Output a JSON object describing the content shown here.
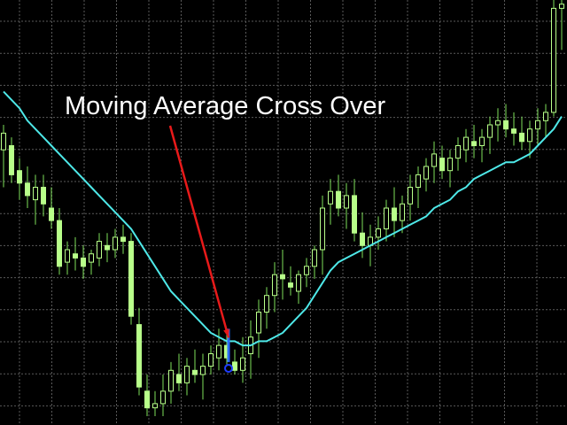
{
  "annotation": {
    "text": "Moving Average Cross Over"
  },
  "colors": {
    "background": "#000000",
    "grid": "#5a5a5a",
    "candle": "#b8ff8a",
    "candle_wick": "#7ee05a",
    "moving_average": "#4ee8e8",
    "arrow": "#e81a1a",
    "signal_bar": "#2a6cff",
    "signal_marker": "#1f3dff"
  },
  "chart_data": {
    "type": "candlestick",
    "grid": true,
    "legend": "none",
    "ylim": [
      0,
      100
    ],
    "candles": [
      {
        "o": 64,
        "h": 70,
        "l": 55,
        "c": 68
      },
      {
        "o": 65,
        "h": 67,
        "l": 56,
        "c": 58
      },
      {
        "o": 59,
        "h": 62,
        "l": 52,
        "c": 56
      },
      {
        "o": 56,
        "h": 60,
        "l": 50,
        "c": 53
      },
      {
        "o": 52,
        "h": 58,
        "l": 46,
        "c": 55
      },
      {
        "o": 55,
        "h": 58,
        "l": 48,
        "c": 51
      },
      {
        "o": 50,
        "h": 55,
        "l": 45,
        "c": 47
      },
      {
        "o": 47,
        "h": 50,
        "l": 34,
        "c": 36
      },
      {
        "o": 37,
        "h": 42,
        "l": 34,
        "c": 40
      },
      {
        "o": 39,
        "h": 43,
        "l": 35,
        "c": 38
      },
      {
        "o": 38,
        "h": 41,
        "l": 33,
        "c": 36
      },
      {
        "o": 37,
        "h": 40,
        "l": 34,
        "c": 39
      },
      {
        "o": 38,
        "h": 44,
        "l": 36,
        "c": 42
      },
      {
        "o": 41,
        "h": 44,
        "l": 37,
        "c": 40
      },
      {
        "o": 40,
        "h": 45,
        "l": 38,
        "c": 43
      },
      {
        "o": 43,
        "h": 46,
        "l": 39,
        "c": 42
      },
      {
        "o": 42,
        "h": 44,
        "l": 22,
        "c": 24
      },
      {
        "o": 22,
        "h": 26,
        "l": 5,
        "c": 7
      },
      {
        "o": 6,
        "h": 10,
        "l": 0,
        "c": 2
      },
      {
        "o": 2,
        "h": 6,
        "l": 0,
        "c": 3
      },
      {
        "o": 3,
        "h": 10,
        "l": 0,
        "c": 6
      },
      {
        "o": 6,
        "h": 13,
        "l": 3,
        "c": 11
      },
      {
        "o": 10,
        "h": 15,
        "l": 6,
        "c": 8
      },
      {
        "o": 8,
        "h": 14,
        "l": 5,
        "c": 12
      },
      {
        "o": 11,
        "h": 16,
        "l": 8,
        "c": 10
      },
      {
        "o": 10,
        "h": 15,
        "l": 4,
        "c": 12
      },
      {
        "o": 12,
        "h": 17,
        "l": 10,
        "c": 15
      },
      {
        "o": 14,
        "h": 21,
        "l": 11,
        "c": 17
      },
      {
        "o": 17,
        "h": 21,
        "l": 12,
        "c": 14
      },
      {
        "o": 13,
        "h": 16,
        "l": 10,
        "c": 11
      },
      {
        "o": 11,
        "h": 19,
        "l": 8,
        "c": 14
      },
      {
        "o": 15,
        "h": 23,
        "l": 9,
        "c": 19
      },
      {
        "o": 20,
        "h": 28,
        "l": 14,
        "c": 25
      },
      {
        "o": 25,
        "h": 31,
        "l": 21,
        "c": 29
      },
      {
        "o": 29,
        "h": 37,
        "l": 25,
        "c": 34
      },
      {
        "o": 34,
        "h": 40,
        "l": 28,
        "c": 33
      },
      {
        "o": 32,
        "h": 36,
        "l": 29,
        "c": 31
      },
      {
        "o": 30,
        "h": 35,
        "l": 27,
        "c": 34
      },
      {
        "o": 34,
        "h": 38,
        "l": 31,
        "c": 36
      },
      {
        "o": 36,
        "h": 41,
        "l": 33,
        "c": 40
      },
      {
        "o": 40,
        "h": 53,
        "l": 34,
        "c": 50
      },
      {
        "o": 51,
        "h": 57,
        "l": 46,
        "c": 54
      },
      {
        "o": 54,
        "h": 58,
        "l": 48,
        "c": 50
      },
      {
        "o": 50,
        "h": 56,
        "l": 45,
        "c": 53
      },
      {
        "o": 53,
        "h": 57,
        "l": 42,
        "c": 44
      },
      {
        "o": 44,
        "h": 49,
        "l": 38,
        "c": 41
      },
      {
        "o": 41,
        "h": 46,
        "l": 36,
        "c": 43
      },
      {
        "o": 43,
        "h": 48,
        "l": 40,
        "c": 45
      },
      {
        "o": 45,
        "h": 52,
        "l": 42,
        "c": 50
      },
      {
        "o": 50,
        "h": 55,
        "l": 43,
        "c": 47
      },
      {
        "o": 47,
        "h": 53,
        "l": 44,
        "c": 51
      },
      {
        "o": 51,
        "h": 58,
        "l": 47,
        "c": 55
      },
      {
        "o": 55,
        "h": 60,
        "l": 50,
        "c": 58
      },
      {
        "o": 57,
        "h": 62,
        "l": 54,
        "c": 60
      },
      {
        "o": 60,
        "h": 66,
        "l": 56,
        "c": 63
      },
      {
        "o": 62,
        "h": 65,
        "l": 57,
        "c": 59
      },
      {
        "o": 59,
        "h": 64,
        "l": 55,
        "c": 62
      },
      {
        "o": 62,
        "h": 67,
        "l": 59,
        "c": 65
      },
      {
        "o": 64,
        "h": 69,
        "l": 61,
        "c": 67
      },
      {
        "o": 66,
        "h": 70,
        "l": 62,
        "c": 65
      },
      {
        "o": 65,
        "h": 69,
        "l": 61,
        "c": 67
      },
      {
        "o": 67,
        "h": 72,
        "l": 63,
        "c": 70
      },
      {
        "o": 70,
        "h": 74,
        "l": 66,
        "c": 71
      },
      {
        "o": 71,
        "h": 75,
        "l": 67,
        "c": 69
      },
      {
        "o": 69,
        "h": 73,
        "l": 65,
        "c": 68
      },
      {
        "o": 68,
        "h": 72,
        "l": 64,
        "c": 66
      },
      {
        "o": 66,
        "h": 71,
        "l": 62,
        "c": 69
      },
      {
        "o": 69,
        "h": 74,
        "l": 65,
        "c": 71
      },
      {
        "o": 71,
        "h": 75,
        "l": 67,
        "c": 73
      },
      {
        "o": 73,
        "h": 100,
        "l": 72,
        "c": 98
      },
      {
        "o": 98,
        "h": 100,
        "l": 88,
        "c": 99
      }
    ],
    "moving_average": [
      78,
      76,
      74,
      71,
      69,
      67,
      65,
      63,
      61,
      59,
      57,
      55,
      53,
      51,
      49,
      47,
      45,
      42,
      39,
      36,
      33,
      30,
      28,
      26,
      24,
      22,
      20,
      19,
      18,
      18,
      17,
      17,
      18,
      18,
      19,
      20,
      22,
      24,
      26,
      29,
      32,
      35,
      37,
      38,
      39,
      40,
      41,
      42,
      43,
      44,
      45,
      46,
      47,
      48,
      50,
      51,
      52,
      54,
      55,
      57,
      58,
      59,
      60,
      61,
      61,
      62,
      63,
      65,
      67,
      69,
      72
    ],
    "signal_index": 28,
    "arrow_target_index": 28
  }
}
